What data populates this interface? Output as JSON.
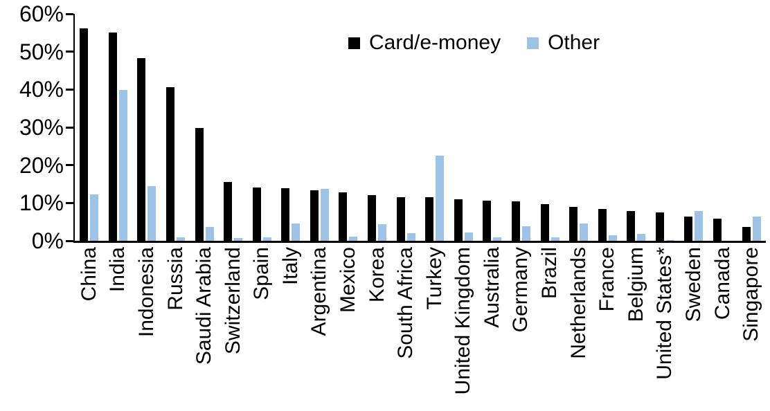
{
  "chart_data": {
    "type": "bar",
    "title": "",
    "xlabel": "",
    "ylabel": "",
    "categories": [
      "China",
      "India",
      "Indonesia",
      "Russia",
      "Saudi Arabia",
      "Switzerland",
      "Spain",
      "Italy",
      "Argentina",
      "Mexico",
      "Korea",
      "South Africa",
      "Turkey",
      "United Kingdom",
      "Australia",
      "Germany",
      "Brazil",
      "Netherlands",
      "France",
      "Belgium",
      "United States*",
      "Sweden",
      "Canada",
      "Singapore"
    ],
    "series": [
      {
        "name": "Card/e-money",
        "color": "#000000",
        "values": [
          56.2,
          55.0,
          48.3,
          40.6,
          29.9,
          15.5,
          14.1,
          14.0,
          13.3,
          12.8,
          12.1,
          11.6,
          11.5,
          10.9,
          10.7,
          10.4,
          9.7,
          9.0,
          8.5,
          7.9,
          7.6,
          6.4,
          5.8,
          3.6
        ]
      },
      {
        "name": "Other",
        "color": "#9DC3E6",
        "values": [
          12.3,
          39.8,
          14.4,
          0.9,
          3.7,
          0.7,
          1.0,
          4.5,
          13.7,
          1.1,
          4.4,
          2.1,
          22.5,
          2.2,
          0.9,
          3.8,
          1.0,
          4.6,
          1.4,
          1.9,
          0.2,
          7.9,
          0.0,
          6.4
        ]
      }
    ],
    "y_axis": {
      "min": 0,
      "max": 60,
      "tick_step": 10,
      "tick_labels": [
        "0%",
        "10%",
        "20%",
        "30%",
        "40%",
        "50%",
        "60%"
      ]
    },
    "legend_position": "top-center",
    "grid": false,
    "bar_orientation": "vertical",
    "x_label_rotation_deg": 90
  },
  "legend": {
    "card_label": "Card/e-money",
    "other_label": "Other"
  },
  "colors": {
    "card": "#000000",
    "other": "#9DC3E6",
    "axis": "#000000",
    "background": "#ffffff"
  }
}
